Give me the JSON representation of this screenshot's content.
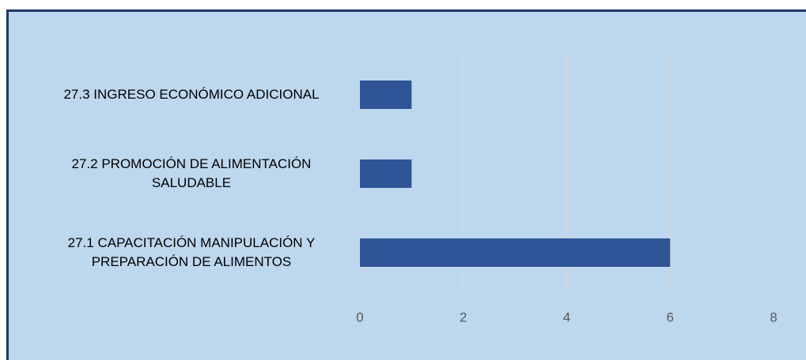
{
  "chart_data": {
    "type": "hbar",
    "categories": [
      "27.1 CAPACITACIÓN MANIPULACIÓN Y PREPARACIÓN DE ALIMENTOS",
      "27.2 PROMOCIÓN DE ALIMENTACIÓN SALUDABLE",
      "27.3 INGRESO ECONÓMICO ADICIONAL"
    ],
    "values": [
      6,
      1,
      1
    ],
    "color": "#2f5597",
    "xlim": [
      0,
      8
    ],
    "xticks": [
      0,
      2,
      4,
      6,
      8
    ],
    "grid": true
  }
}
